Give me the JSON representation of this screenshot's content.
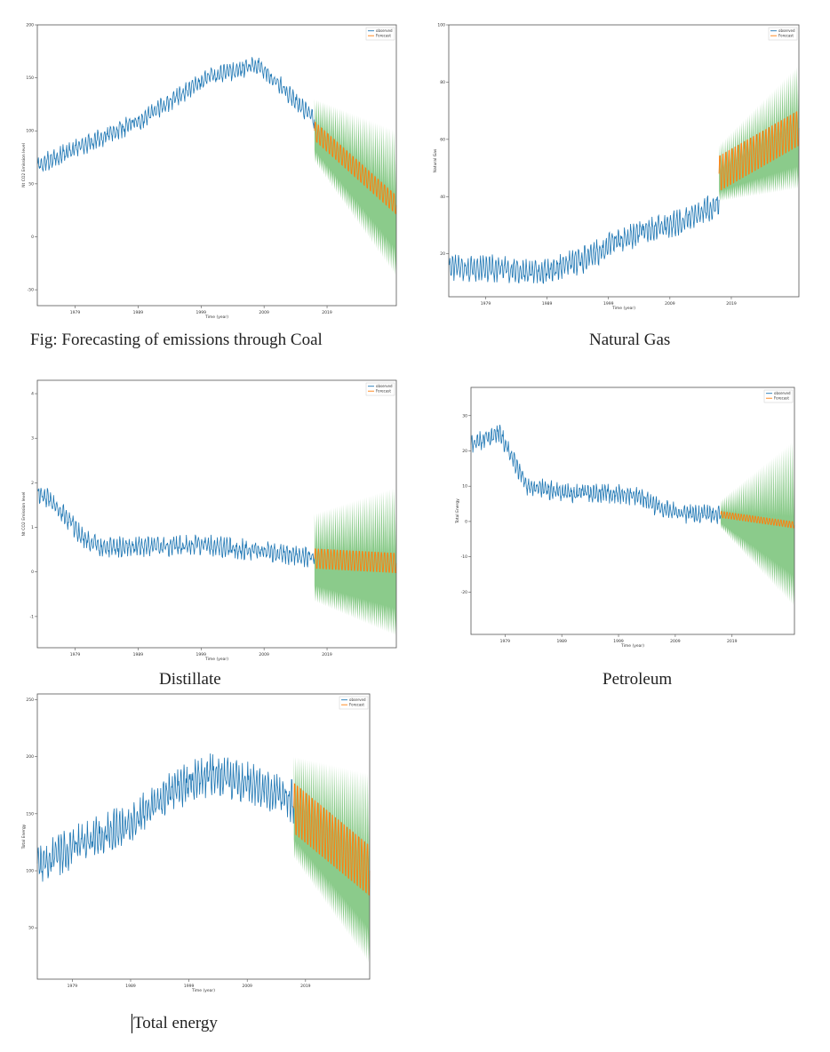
{
  "colors": {
    "observed": "#1f77b4",
    "forecast": "#ff7f0e",
    "band": "#2ca02c",
    "frame": "#555555"
  },
  "captions": {
    "coal": "Fig: Forecasting of emissions through Coal",
    "natural_gas": "Natural Gas",
    "distillate": "Distillate",
    "petroleum": "Petroleum",
    "total": "Total energy"
  },
  "chart_data": [
    {
      "id": "coal",
      "type": "line",
      "xlabel": "Time (year)",
      "ylabel": "Nt CO2 Emission level",
      "xlim": [
        1973,
        2030
      ],
      "ylim": [
        -65,
        200
      ],
      "xticks": [
        1979,
        1989,
        1999,
        2009,
        2019
      ],
      "yticks": [
        -50,
        0,
        50,
        100,
        150,
        200
      ],
      "legend": [
        "observed",
        "Forecast"
      ],
      "legend_position": "top-right",
      "observed_trend": [
        [
          1973,
          68
        ],
        [
          1980,
          85
        ],
        [
          1990,
          112
        ],
        [
          2000,
          150
        ],
        [
          2008,
          162
        ],
        [
          2012,
          140
        ],
        [
          2017,
          110
        ]
      ],
      "observed_amplitude": 10,
      "forecast_start": 2017,
      "forecast_end": 2030,
      "forecast_trend": [
        [
          2017,
          100
        ],
        [
          2030,
          30
        ]
      ],
      "forecast_amplitude": 10,
      "band_amplitude": [
        [
          2017,
          30
        ],
        [
          2030,
          70
        ]
      ]
    },
    {
      "id": "natural_gas",
      "type": "line",
      "xlabel": "Time (year)",
      "ylabel": "Natural Gas",
      "xlim": [
        1973,
        2030
      ],
      "ylim": [
        5,
        100
      ],
      "xticks": [
        1979,
        1989,
        1999,
        2009,
        2019
      ],
      "yticks": [
        20,
        40,
        60,
        80,
        100
      ],
      "legend": [
        "observed",
        "Forecast"
      ],
      "legend_position": "top-right",
      "observed_trend": [
        [
          1973,
          15
        ],
        [
          1980,
          15
        ],
        [
          1988,
          13
        ],
        [
          1995,
          18
        ],
        [
          2000,
          24
        ],
        [
          2005,
          28
        ],
        [
          2012,
          32
        ],
        [
          2017,
          38
        ]
      ],
      "observed_amplitude": 5,
      "forecast_start": 2017,
      "forecast_end": 2030,
      "forecast_trend": [
        [
          2017,
          48
        ],
        [
          2030,
          64
        ]
      ],
      "forecast_amplitude": 7,
      "band_amplitude": [
        [
          2017,
          10
        ],
        [
          2030,
          22
        ]
      ]
    },
    {
      "id": "distillate",
      "type": "line",
      "xlabel": "Time (year)",
      "ylabel": "Nt CO2 Emission level",
      "xlim": [
        1973,
        2030
      ],
      "ylim": [
        -1.7,
        4.3
      ],
      "xticks": [
        1979,
        1989,
        1999,
        2009,
        2019
      ],
      "yticks": [
        -1,
        0,
        1,
        2,
        3,
        4
      ],
      "legend": [
        "observed",
        "Forecast"
      ],
      "legend_position": "top-right",
      "observed_trend": [
        [
          1973,
          1.8
        ],
        [
          1976,
          1.5
        ],
        [
          1980,
          0.8
        ],
        [
          1983,
          0.55
        ],
        [
          2000,
          0.6
        ],
        [
          2010,
          0.45
        ],
        [
          2017,
          0.32
        ]
      ],
      "observed_amplitude": 0.25,
      "forecast_start": 2017,
      "forecast_end": 2030,
      "forecast_trend": [
        [
          2017,
          0.3
        ],
        [
          2030,
          0.2
        ]
      ],
      "forecast_amplitude": 0.25,
      "band_amplitude": [
        [
          2017,
          1.0
        ],
        [
          2030,
          1.7
        ]
      ]
    },
    {
      "id": "petroleum",
      "type": "line",
      "xlabel": "Time (year)",
      "ylabel": "Total Energy",
      "xlim": [
        1973,
        2030
      ],
      "ylim": [
        -32,
        38
      ],
      "xticks": [
        1979,
        1989,
        1999,
        2009,
        2019
      ],
      "yticks": [
        -20,
        -10,
        0,
        10,
        20,
        30
      ],
      "legend": [
        "observed",
        "Forecast"
      ],
      "legend_position": "top-right",
      "observed_trend": [
        [
          1973,
          22
        ],
        [
          1978,
          25
        ],
        [
          1980,
          19
        ],
        [
          1983,
          10
        ],
        [
          1990,
          8
        ],
        [
          1998,
          8
        ],
        [
          2003,
          7
        ],
        [
          2006,
          4
        ],
        [
          2011,
          2
        ],
        [
          2017,
          2
        ]
      ],
      "observed_amplitude": 3,
      "forecast_start": 2017,
      "forecast_end": 2030,
      "forecast_trend": [
        [
          2017,
          2
        ],
        [
          2030,
          -1
        ]
      ],
      "forecast_amplitude": 1,
      "band_amplitude": [
        [
          2017,
          4
        ],
        [
          2030,
          24
        ]
      ]
    },
    {
      "id": "total",
      "type": "line",
      "xlabel": "Time (year)",
      "ylabel": "Total Energy",
      "xlim": [
        1973,
        2030
      ],
      "ylim": [
        5,
        255
      ],
      "xticks": [
        1979,
        1989,
        1999,
        2009,
        2019
      ],
      "yticks": [
        50,
        100,
        150,
        200,
        250
      ],
      "legend": [
        "observed",
        "Forecast"
      ],
      "legend_position": "top-right",
      "observed_trend": [
        [
          1973,
          105
        ],
        [
          1980,
          122
        ],
        [
          1990,
          145
        ],
        [
          1997,
          172
        ],
        [
          2003,
          185
        ],
        [
          2010,
          175
        ],
        [
          2017,
          160
        ]
      ],
      "observed_amplitude": 20,
      "forecast_start": 2017,
      "forecast_end": 2030,
      "forecast_trend": [
        [
          2017,
          155
        ],
        [
          2030,
          100
        ]
      ],
      "forecast_amplitude": 25,
      "band_amplitude": [
        [
          2017,
          45
        ],
        [
          2030,
          85
        ]
      ]
    }
  ]
}
